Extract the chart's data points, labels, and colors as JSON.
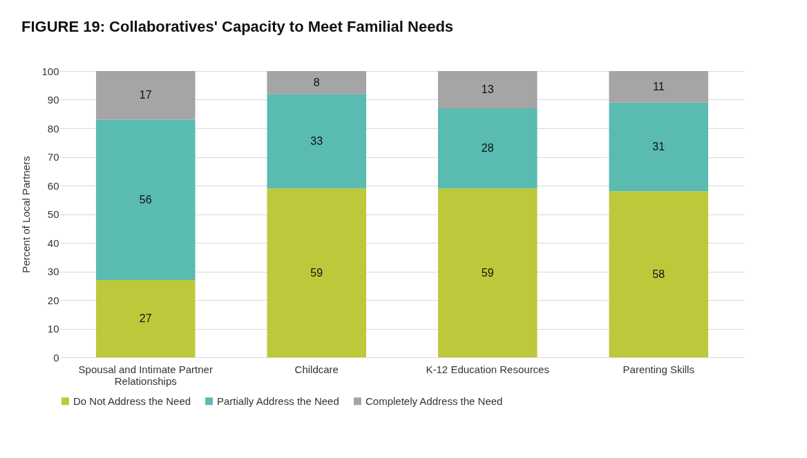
{
  "chart_data": {
    "type": "bar",
    "title": "FIGURE 19: Collaboratives' Capacity to Meet Familial Needs",
    "ylabel": "Percent of Local Partners",
    "categories": [
      "Spousal and Intimate Partner Relationships",
      "Childcare",
      "K-12 Education Resources",
      "Parenting Skills"
    ],
    "stacked": true,
    "data_labels": true,
    "legend": "bottom",
    "grid": "y",
    "ylim": [
      0,
      100
    ],
    "yticks": [
      0,
      10,
      20,
      30,
      40,
      50,
      60,
      70,
      80,
      90,
      100
    ],
    "series": [
      {
        "name": "Do Not Address the Need",
        "color": "#bec83b",
        "values": [
          27,
          59,
          59,
          58
        ]
      },
      {
        "name": "Partially Address the Need",
        "color": "#5abbb0",
        "values": [
          56,
          33,
          28,
          31
        ]
      },
      {
        "name": "Completely Address the Need",
        "color": "#a5a5a5",
        "values": [
          17,
          8,
          13,
          11
        ]
      }
    ]
  }
}
